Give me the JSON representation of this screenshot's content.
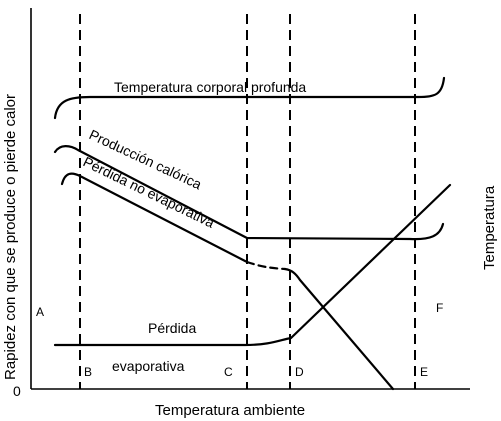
{
  "axes": {
    "x_label": "Temperatura ambiente",
    "y_label_left": "Rapidez con que se produce o pierde calor",
    "y_label_right": "Temperatura",
    "origin": "0"
  },
  "curves": {
    "core_temp": "Temperatura corporal profunda",
    "heat_production": "Producción calórica",
    "non_evaporative_loss": "Pérdida no evaporativa",
    "evaporative_loss_line1": "Pérdida",
    "evaporative_loss_line2": "evaporativa"
  },
  "zones": {
    "A": "A",
    "B": "B",
    "C": "C",
    "D": "D",
    "E": "E",
    "F": "F"
  }
}
